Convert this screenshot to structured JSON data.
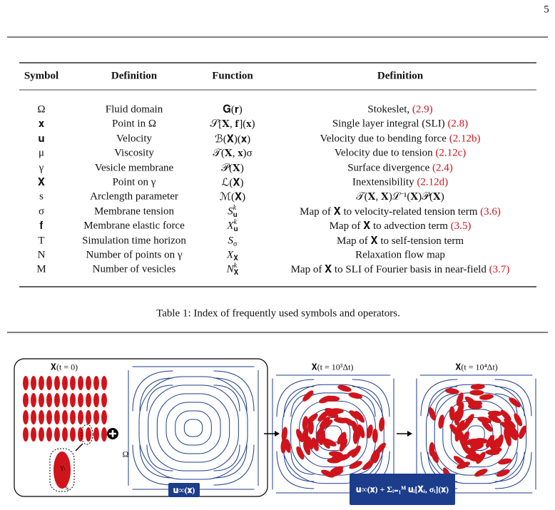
{
  "page_number": "5",
  "table": {
    "header": [
      "Symbol",
      "Definition",
      "Function",
      "Definition"
    ],
    "rows": [
      {
        "symbol": "Ω",
        "definition": "Fluid domain",
        "function": "𝐆(𝐫)",
        "description": {
          "text": "Stokeslet,",
          "ref": "(2.9)"
        }
      },
      {
        "symbol": "𝐱",
        "definition": "Point in Ω",
        "function": "𝒮[𝐗, 𝐟](𝐱)",
        "description": {
          "text": "Single layer integral (SLI)",
          "ref": "(2.8)"
        }
      },
      {
        "symbol": "𝐮",
        "definition": "Velocity",
        "function": "ℬ(𝐗)(𝐱)",
        "description": {
          "text": "Velocity due to bending force",
          "ref": "(2.12b)"
        }
      },
      {
        "symbol": "μ",
        "definition": "Viscosity",
        "function": "𝒯(𝐗, 𝐱)σ",
        "description": {
          "text": "Velocity due to tension",
          "ref": "(2.12c)"
        }
      },
      {
        "symbol": "γ",
        "definition": "Vesicle membrane",
        "function": "𝒫(𝐗)",
        "description": {
          "text": "Surface divergence",
          "ref": "(2.4)"
        }
      },
      {
        "symbol": "𝐗",
        "definition": "Point on γ",
        "function": "ℒ(𝐗)",
        "description": {
          "text": "Inextensibility",
          "ref": "(2.12d)"
        }
      },
      {
        "symbol": "s",
        "definition": "Arclength parameter",
        "function": "ℳ(𝐗)",
        "description": {
          "text": "𝒯(𝐗, 𝐗)ℒ⁻¹(𝐗)𝒫(𝐗)"
        }
      },
      {
        "symbol": "σ",
        "definition": "Membrane tension",
        "function": {
          "base": "S",
          "sup": "k",
          "sub": "𝐮"
        },
        "description": {
          "text": "Map of 𝐗 to velocity-related tension term",
          "ref": "(3.6)"
        }
      },
      {
        "symbol": "𝐟",
        "definition": "Membrane elastic force",
        "function": {
          "base": "X",
          "sup": "k",
          "sub": "𝐮"
        },
        "description": {
          "text": "Map of 𝐗 to advection term",
          "ref": "(3.5)"
        }
      },
      {
        "symbol": "T",
        "definition": "Simulation time horizon",
        "function": {
          "base": "S",
          "sub": "σ"
        },
        "description": {
          "text": "Map of 𝐗 to self-tension term"
        }
      },
      {
        "symbol": "N",
        "definition": "Number of points on γ",
        "function": {
          "base": "X",
          "sub": "𝐗"
        },
        "description": {
          "text": "Relaxation flow map"
        }
      },
      {
        "symbol": "M",
        "definition": "Number of vesicles",
        "function": {
          "base": "N",
          "sup": "k",
          "sub": "𝐗"
        },
        "description": {
          "text": "Map of 𝐗 to SLI of Fourier basis in near-field",
          "ref": "(3.7)"
        }
      }
    ]
  },
  "caption": "Table 1: Index of frequently used symbols and operators.",
  "figure": {
    "initial_label": "𝐗(t = 0)",
    "domain_label": "Ω",
    "vesicle_label": "γᵢ",
    "arclength_label": "sᵢ",
    "background_flow": "𝐮∞(𝐱)",
    "mid_label": "𝐗(t = 10³Δt)",
    "final_label": "𝐗(t = 10⁴Δt)",
    "total_flow": "𝐮∞(𝐱) + Σᵢ₌₁ᴹ 𝐮ᵢ[𝐗ᵢ, σᵢ](𝐱)"
  }
}
